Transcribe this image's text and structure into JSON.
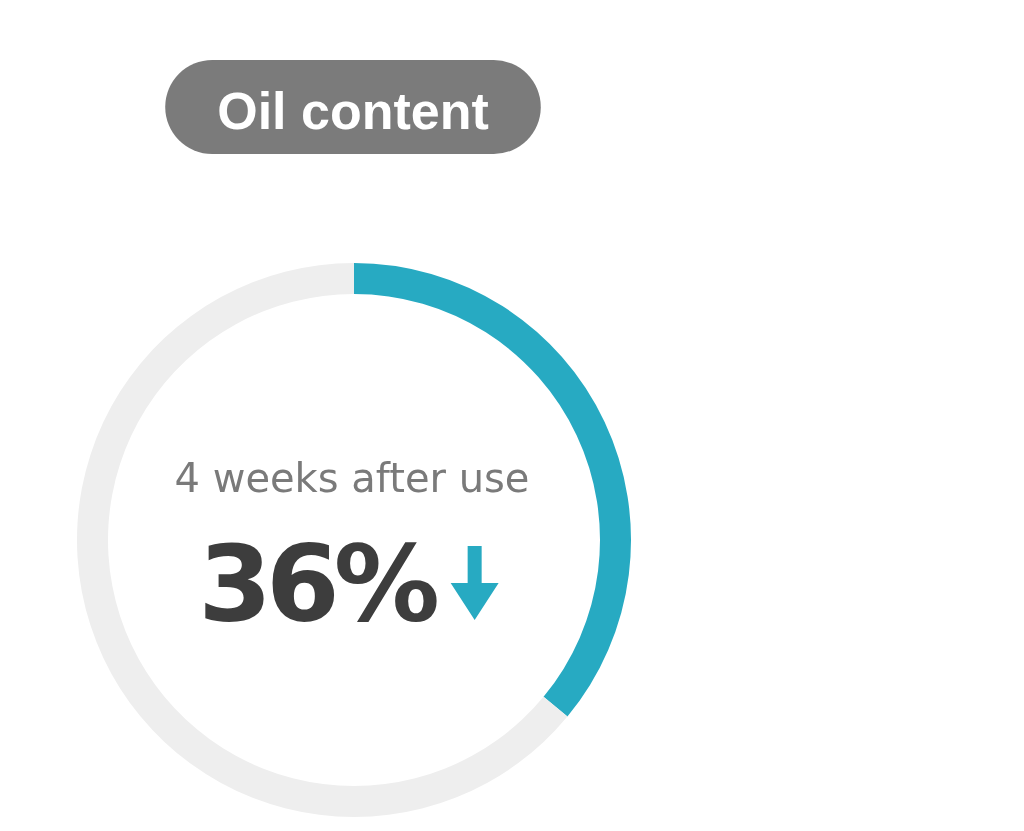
{
  "chart_data": {
    "type": "donut",
    "title": "Oil content",
    "categories": [
      null,
      null
    ],
    "values": [
      36,
      64
    ],
    "colors": [
      "#27aac2",
      "#eeeeee"
    ],
    "annotations": [
      "4 weeks after use",
      "36%"
    ]
  }
}
